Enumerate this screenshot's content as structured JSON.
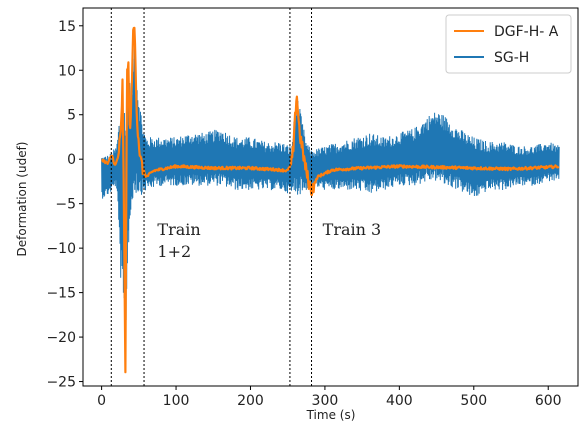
{
  "chart_data": {
    "type": "line",
    "title": "",
    "xlabel": "Time (s)",
    "ylabel": "Deformation (udef)",
    "xlim": [
      -25,
      640
    ],
    "ylim": [
      -25.5,
      17
    ],
    "xticks": [
      0,
      100,
      200,
      300,
      400,
      500,
      600
    ],
    "yticks": [
      -25,
      -20,
      -15,
      -10,
      -5,
      0,
      5,
      10,
      15
    ],
    "grid": false,
    "legend_position": "top-right",
    "vlines": [
      13,
      57,
      253,
      282
    ],
    "annotations": [
      {
        "lines": [
          "Train",
          "1+2"
        ],
        "x": 75,
        "y": -8.5
      },
      {
        "lines": [
          "Train 3"
        ],
        "x": 297,
        "y": -8.5
      }
    ],
    "series": [
      {
        "name": "DGF-H- A",
        "color": "#ff7f0e",
        "x": [
          0,
          8,
          14,
          18,
          22,
          26,
          28,
          30,
          32,
          34,
          36,
          38,
          40,
          42,
          44,
          46,
          48,
          50,
          52,
          55,
          60,
          70,
          100,
          150,
          200,
          240,
          250,
          255,
          258,
          262,
          266,
          270,
          274,
          278,
          282,
          290,
          310,
          350,
          400,
          450,
          500,
          550,
          600,
          615
        ],
        "y": [
          0,
          -0.5,
          0.5,
          -0.8,
          0.2,
          3,
          8.5,
          -5,
          -23.5,
          9,
          10.5,
          2,
          7,
          13.5,
          15,
          9,
          4,
          2,
          0,
          -1,
          -2,
          -1.3,
          -0.8,
          -1,
          -1,
          -1.2,
          -1.3,
          -0.5,
          1.5,
          7.5,
          3,
          1,
          -1,
          -2.5,
          -3.5,
          -2,
          -1.2,
          -1,
          -0.8,
          -0.9,
          -1,
          -1.1,
          -0.9,
          -0.8
        ]
      },
      {
        "name": "SG-H",
        "color": "#1f77b4",
        "x": [
          0,
          10,
          20,
          28,
          32,
          36,
          40,
          44,
          48,
          55,
          60,
          80,
          100,
          120,
          140,
          160,
          180,
          200,
          220,
          240,
          255,
          262,
          268,
          275,
          282,
          300,
          320,
          340,
          360,
          380,
          400,
          420,
          440,
          450,
          460,
          480,
          500,
          520,
          540,
          560,
          580,
          600,
          615
        ],
        "upper": [
          0.5,
          0.5,
          1.5,
          9,
          5,
          10.5,
          7,
          14.5,
          9,
          4,
          2.5,
          2.5,
          2.5,
          3,
          3,
          3.5,
          2.5,
          2.5,
          2,
          2,
          1.5,
          7.5,
          5,
          2,
          1,
          1.5,
          2,
          2.5,
          3,
          2.5,
          3,
          3.5,
          5,
          5.5,
          5,
          3.5,
          2.5,
          2,
          2,
          1.5,
          1.5,
          2,
          1.5
        ],
        "lower": [
          -4.5,
          -4,
          -3,
          -18,
          -22.5,
          -10,
          -6,
          -4,
          -4,
          -4,
          -3.5,
          -3,
          -3,
          -3,
          -3,
          -3,
          -3.5,
          -3.5,
          -3.5,
          -3.5,
          -4,
          -4,
          -4,
          -3.5,
          -3,
          -3.5,
          -3.5,
          -3.5,
          -4,
          -3.5,
          -3,
          -3,
          -2.5,
          -2.5,
          -3,
          -3.5,
          -4.5,
          -3.5,
          -3.5,
          -3,
          -3,
          -2.5,
          -2.5
        ]
      }
    ]
  }
}
